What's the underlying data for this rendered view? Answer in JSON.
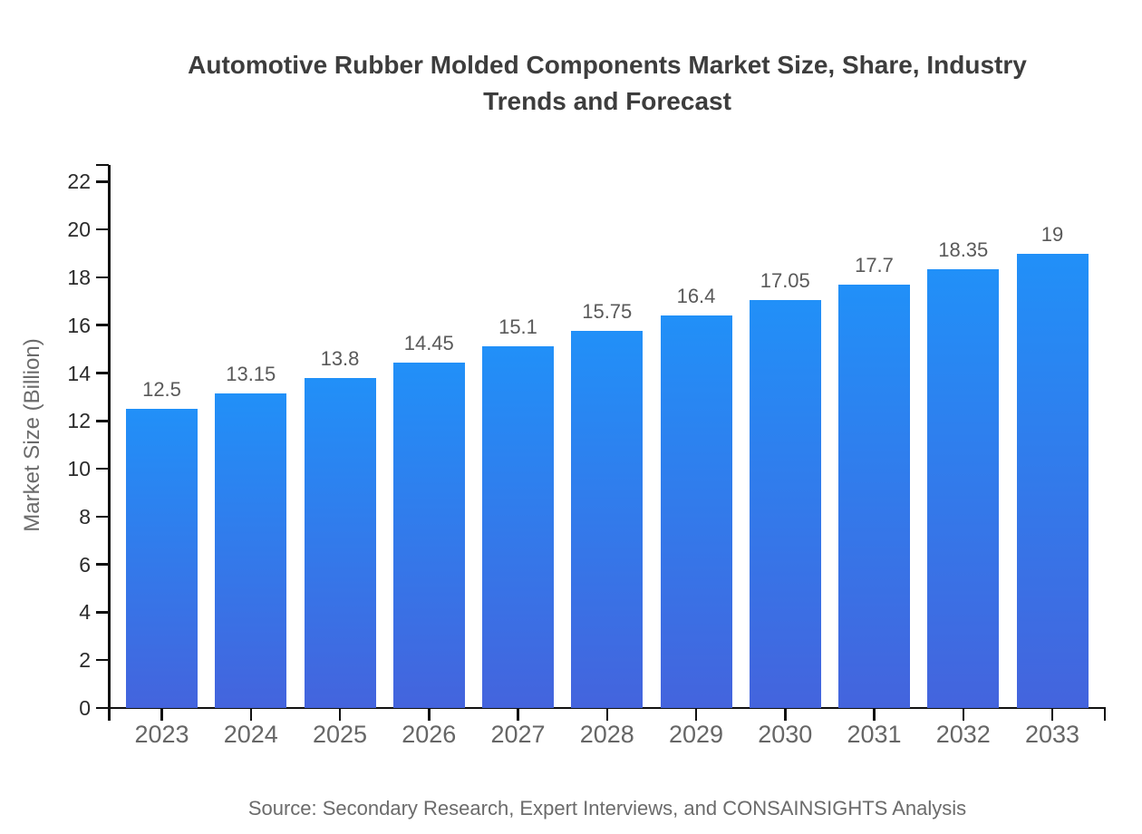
{
  "chart_data": {
    "type": "bar",
    "title": "Automotive Rubber Molded Components Market Size, Share, Industry Trends and Forecast",
    "ylabel": "Market Size (Billion)",
    "xlabel": "",
    "categories": [
      "2023",
      "2024",
      "2025",
      "2026",
      "2027",
      "2028",
      "2029",
      "2030",
      "2031",
      "2032",
      "2033"
    ],
    "values": [
      12.5,
      13.15,
      13.8,
      14.45,
      15.1,
      15.75,
      16.4,
      17.05,
      17.7,
      18.35,
      19
    ],
    "value_labels": [
      "12.5",
      "13.15",
      "13.8",
      "14.45",
      "15.1",
      "15.75",
      "16.4",
      "17.05",
      "17.7",
      "18.35",
      "19"
    ],
    "ylim": [
      0,
      22
    ],
    "y_ticks": [
      0,
      2,
      4,
      6,
      8,
      10,
      12,
      14,
      16,
      18,
      20,
      22
    ],
    "grid": false,
    "legend": "none",
    "source": "Source: Secondary Research, Expert Interviews, and CONSAINSIGHTS Analysis",
    "colors": {
      "bar_gradient_top": "#2190f8",
      "bar_gradient_bottom": "#4464dd",
      "axis": "#111111",
      "title_text": "#3d3d3d",
      "label_text": "#595959",
      "axis_text": "#666666"
    }
  }
}
